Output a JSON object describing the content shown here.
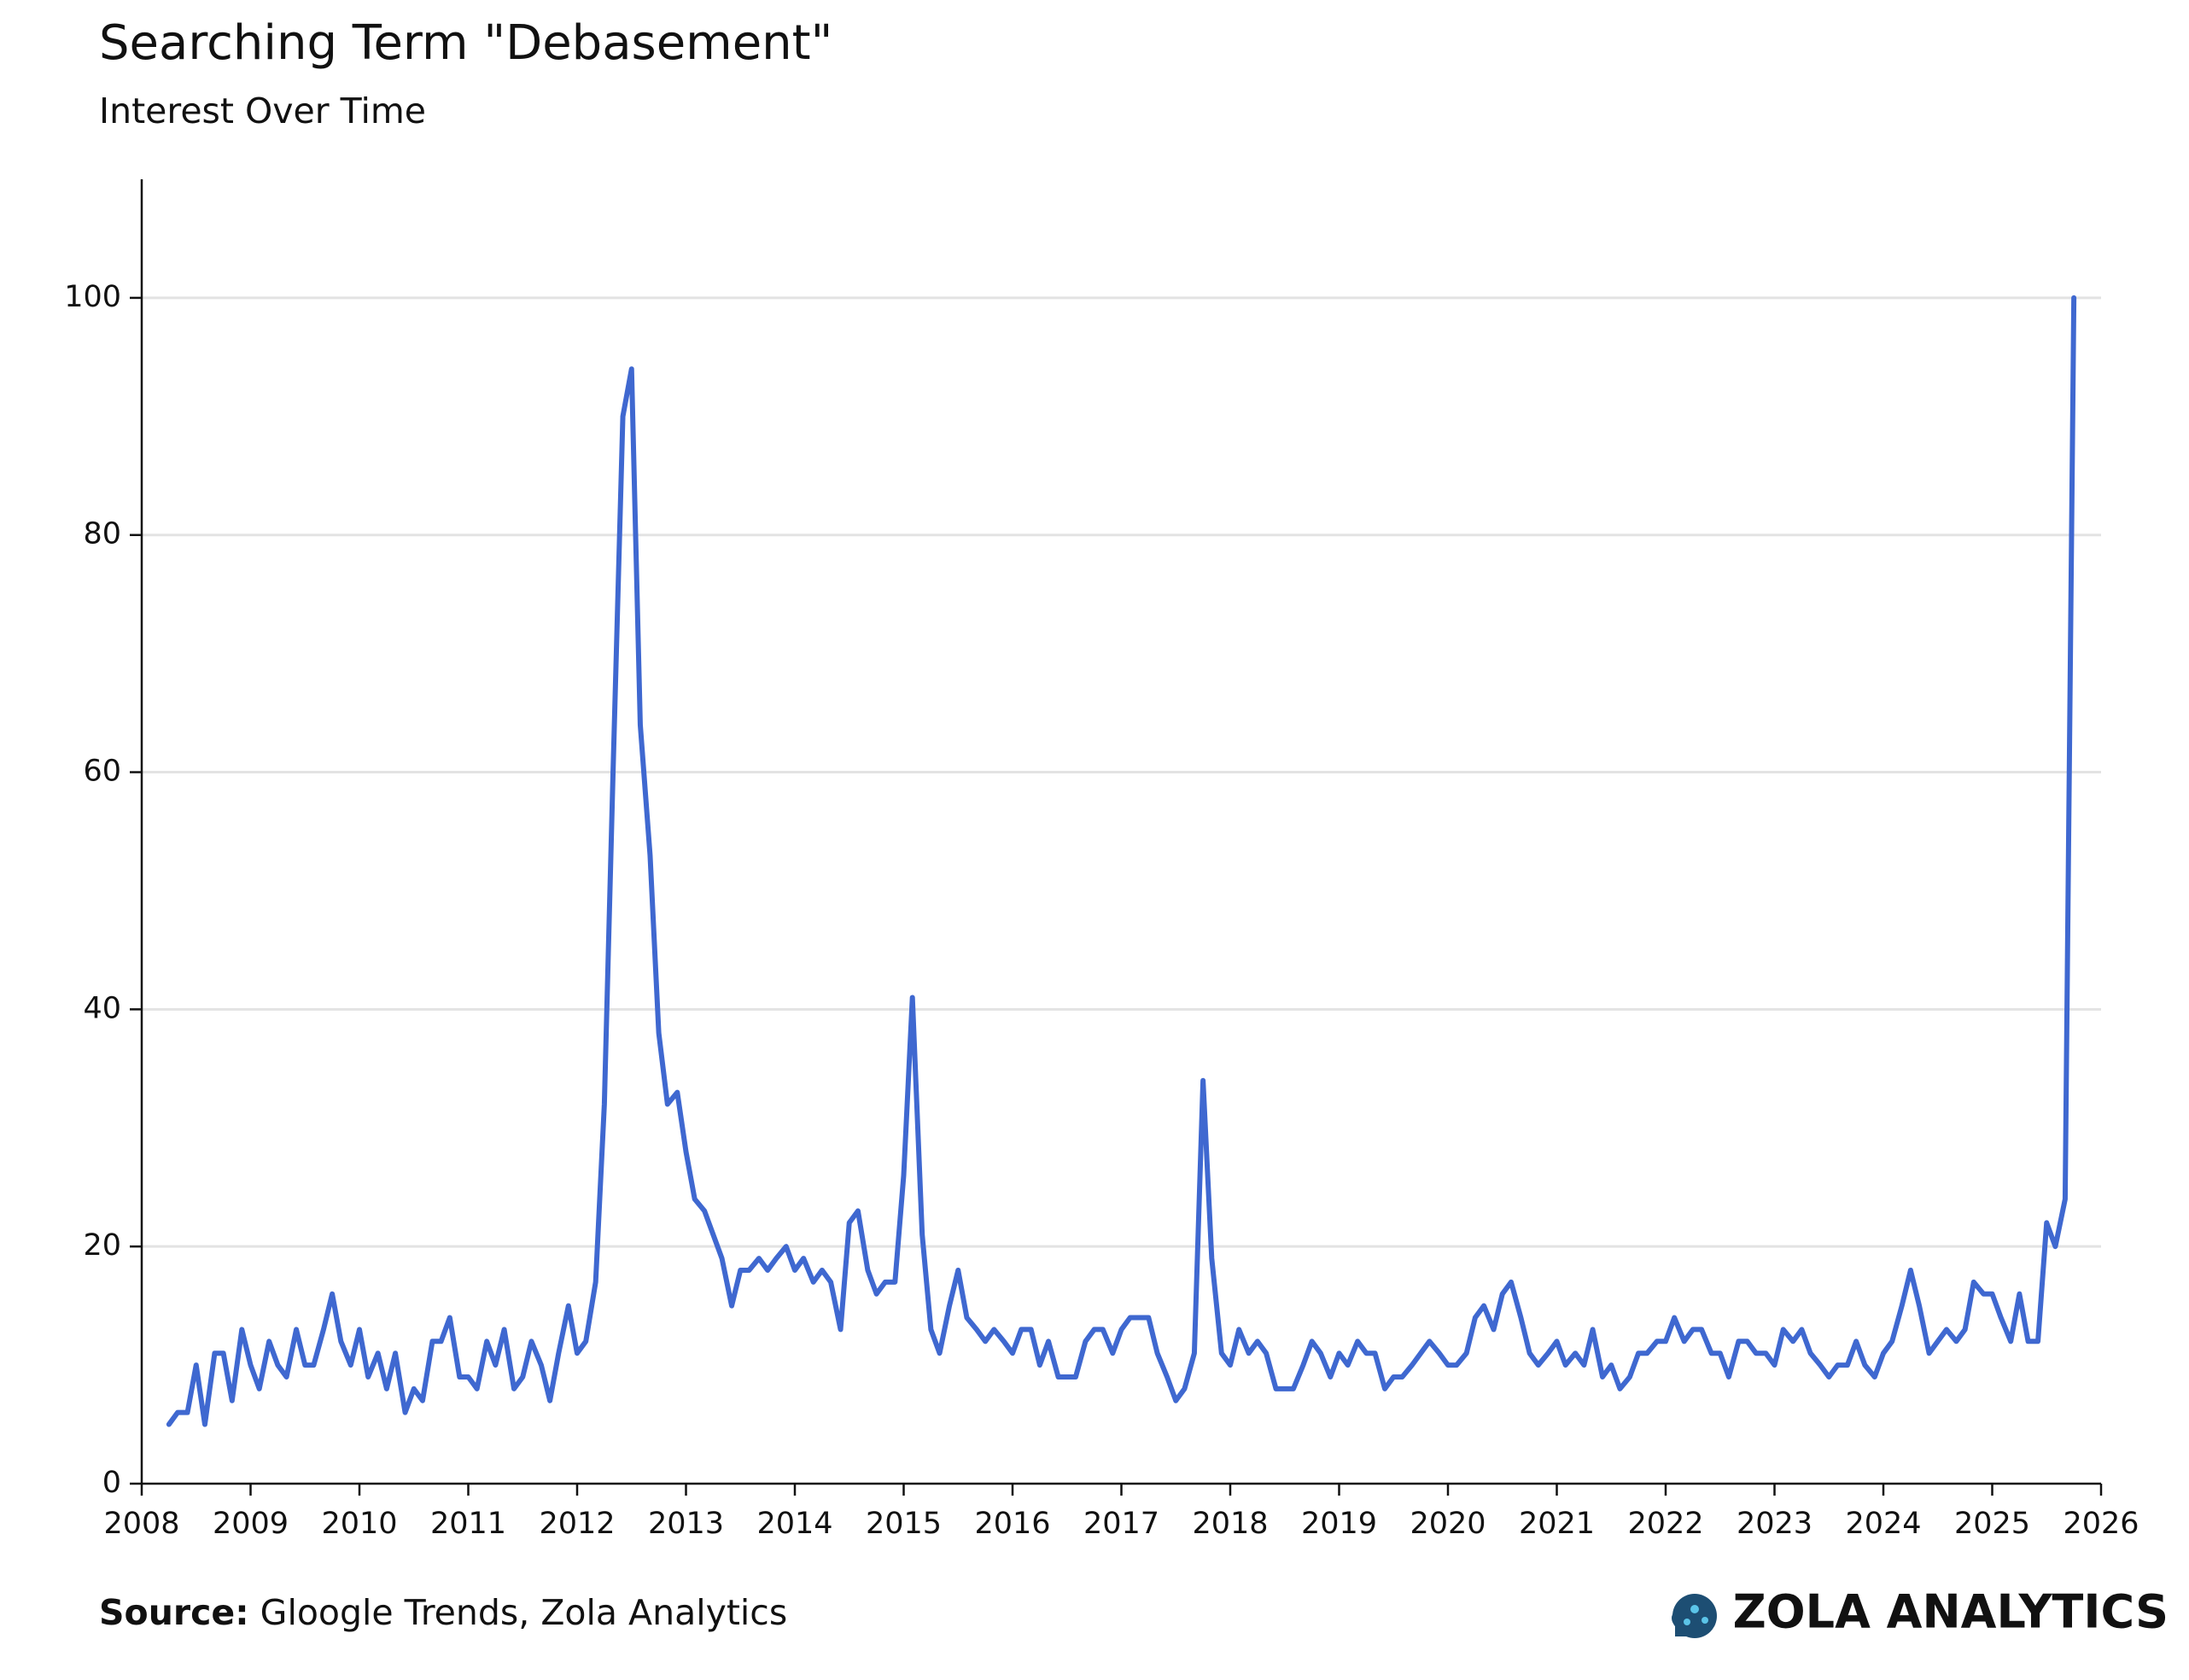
{
  "chart_data": {
    "type": "line",
    "title": "Searching Term \"Debasement\"",
    "subtitle": "Interest Over Time",
    "color": "#3f68d0",
    "grid": true,
    "xlim": [
      2008,
      2026
    ],
    "xticks": [
      2008,
      2009,
      2010,
      2011,
      2012,
      2013,
      2014,
      2015,
      2016,
      2017,
      2018,
      2019,
      2020,
      2021,
      2022,
      2023,
      2024,
      2025,
      2026
    ],
    "ylim": [
      0,
      110
    ],
    "yticks": [
      0,
      20,
      40,
      60,
      80,
      100
    ],
    "x": [
      2008.25,
      2008.33,
      2008.42,
      2008.5,
      2008.58,
      2008.67,
      2008.75,
      2008.83,
      2008.92,
      2009,
      2009.08,
      2009.17,
      2009.25,
      2009.33,
      2009.42,
      2009.5,
      2009.58,
      2009.67,
      2009.75,
      2009.83,
      2009.92,
      2010,
      2010.08,
      2010.17,
      2010.25,
      2010.33,
      2010.42,
      2010.5,
      2010.58,
      2010.67,
      2010.75,
      2010.83,
      2010.92,
      2011,
      2011.08,
      2011.17,
      2011.25,
      2011.33,
      2011.42,
      2011.5,
      2011.58,
      2011.67,
      2011.75,
      2011.83,
      2011.92,
      2012,
      2012.08,
      2012.17,
      2012.25,
      2012.33,
      2012.42,
      2012.5,
      2012.58,
      2012.67,
      2012.75,
      2012.83,
      2012.92,
      2013,
      2013.08,
      2013.17,
      2013.25,
      2013.33,
      2013.42,
      2013.5,
      2013.58,
      2013.67,
      2013.75,
      2013.83,
      2013.92,
      2014,
      2014.08,
      2014.17,
      2014.25,
      2014.33,
      2014.42,
      2014.5,
      2014.58,
      2014.67,
      2014.75,
      2014.83,
      2014.92,
      2015,
      2015.08,
      2015.17,
      2015.25,
      2015.33,
      2015.42,
      2015.5,
      2015.58,
      2015.67,
      2015.75,
      2015.83,
      2015.92,
      2016,
      2016.08,
      2016.17,
      2016.25,
      2016.33,
      2016.42,
      2016.5,
      2016.58,
      2016.67,
      2016.75,
      2016.83,
      2016.92,
      2017,
      2017.08,
      2017.17,
      2017.25,
      2017.33,
      2017.42,
      2017.5,
      2017.58,
      2017.67,
      2017.75,
      2017.83,
      2017.92,
      2018,
      2018.08,
      2018.17,
      2018.25,
      2018.33,
      2018.42,
      2018.5,
      2018.58,
      2018.67,
      2018.75,
      2018.83,
      2018.92,
      2019,
      2019.08,
      2019.17,
      2019.25,
      2019.33,
      2019.42,
      2019.5,
      2019.58,
      2019.67,
      2019.75,
      2019.83,
      2019.92,
      2020,
      2020.08,
      2020.17,
      2020.25,
      2020.33,
      2020.42,
      2020.5,
      2020.58,
      2020.67,
      2020.75,
      2020.83,
      2020.92,
      2021,
      2021.08,
      2021.17,
      2021.25,
      2021.33,
      2021.42,
      2021.5,
      2021.58,
      2021.67,
      2021.75,
      2021.83,
      2021.92,
      2022,
      2022.08,
      2022.17,
      2022.25,
      2022.33,
      2022.42,
      2022.5,
      2022.58,
      2022.67,
      2022.75,
      2022.83,
      2022.92,
      2023,
      2023.08,
      2023.17,
      2023.25,
      2023.33,
      2023.42,
      2023.5,
      2023.58,
      2023.67,
      2023.75,
      2023.83,
      2023.92,
      2024,
      2024.08,
      2024.17,
      2024.25,
      2024.33,
      2024.42,
      2024.5,
      2024.58,
      2024.67,
      2024.75,
      2024.83,
      2024.92,
      2025,
      2025.08,
      2025.17,
      2025.25,
      2025.33,
      2025.42,
      2025.5,
      2025.58,
      2025.67,
      2025.75
    ],
    "values": [
      5,
      6,
      6,
      10,
      5,
      11,
      11,
      7,
      13,
      10,
      8,
      12,
      10,
      9,
      13,
      10,
      10,
      13,
      16,
      12,
      10,
      13,
      9,
      11,
      8,
      11,
      6,
      8,
      7,
      12,
      12,
      14,
      9,
      9,
      8,
      12,
      10,
      13,
      8,
      9,
      12,
      10,
      7,
      11,
      15,
      11,
      12,
      17,
      32,
      60,
      90,
      94,
      64,
      53,
      38,
      32,
      33,
      28,
      24,
      23,
      21,
      19,
      15,
      18,
      18,
      19,
      18,
      19,
      20,
      18,
      19,
      17,
      18,
      17,
      13,
      22,
      23,
      18,
      16,
      17,
      17,
      26,
      41,
      21,
      13,
      11,
      15,
      18,
      14,
      13,
      12,
      13,
      12,
      11,
      13,
      13,
      10,
      12,
      9,
      9,
      9,
      12,
      13,
      13,
      11,
      13,
      14,
      14,
      14,
      11,
      9,
      7,
      8,
      11,
      34,
      19,
      11,
      10,
      13,
      11,
      12,
      11,
      8,
      8,
      8,
      10,
      12,
      11,
      9,
      11,
      10,
      12,
      11,
      11,
      8,
      9,
      9,
      10,
      11,
      12,
      11,
      10,
      10,
      11,
      14,
      15,
      13,
      16,
      17,
      14,
      11,
      10,
      11,
      12,
      10,
      11,
      10,
      13,
      9,
      10,
      8,
      9,
      11,
      11,
      12,
      12,
      14,
      12,
      13,
      13,
      11,
      11,
      9,
      12,
      12,
      11,
      11,
      10,
      13,
      12,
      13,
      11,
      10,
      9,
      10,
      10,
      12,
      10,
      9,
      11,
      12,
      15,
      18,
      15,
      11,
      12,
      13,
      12,
      13,
      17,
      16,
      16,
      14,
      12,
      16,
      12,
      12,
      22,
      20,
      24,
      100
    ]
  },
  "footer": {
    "source_label": "Source:",
    "source": "Gloogle Trends, Zola Analytics",
    "brand": "ZOLA ANALYTICS"
  }
}
